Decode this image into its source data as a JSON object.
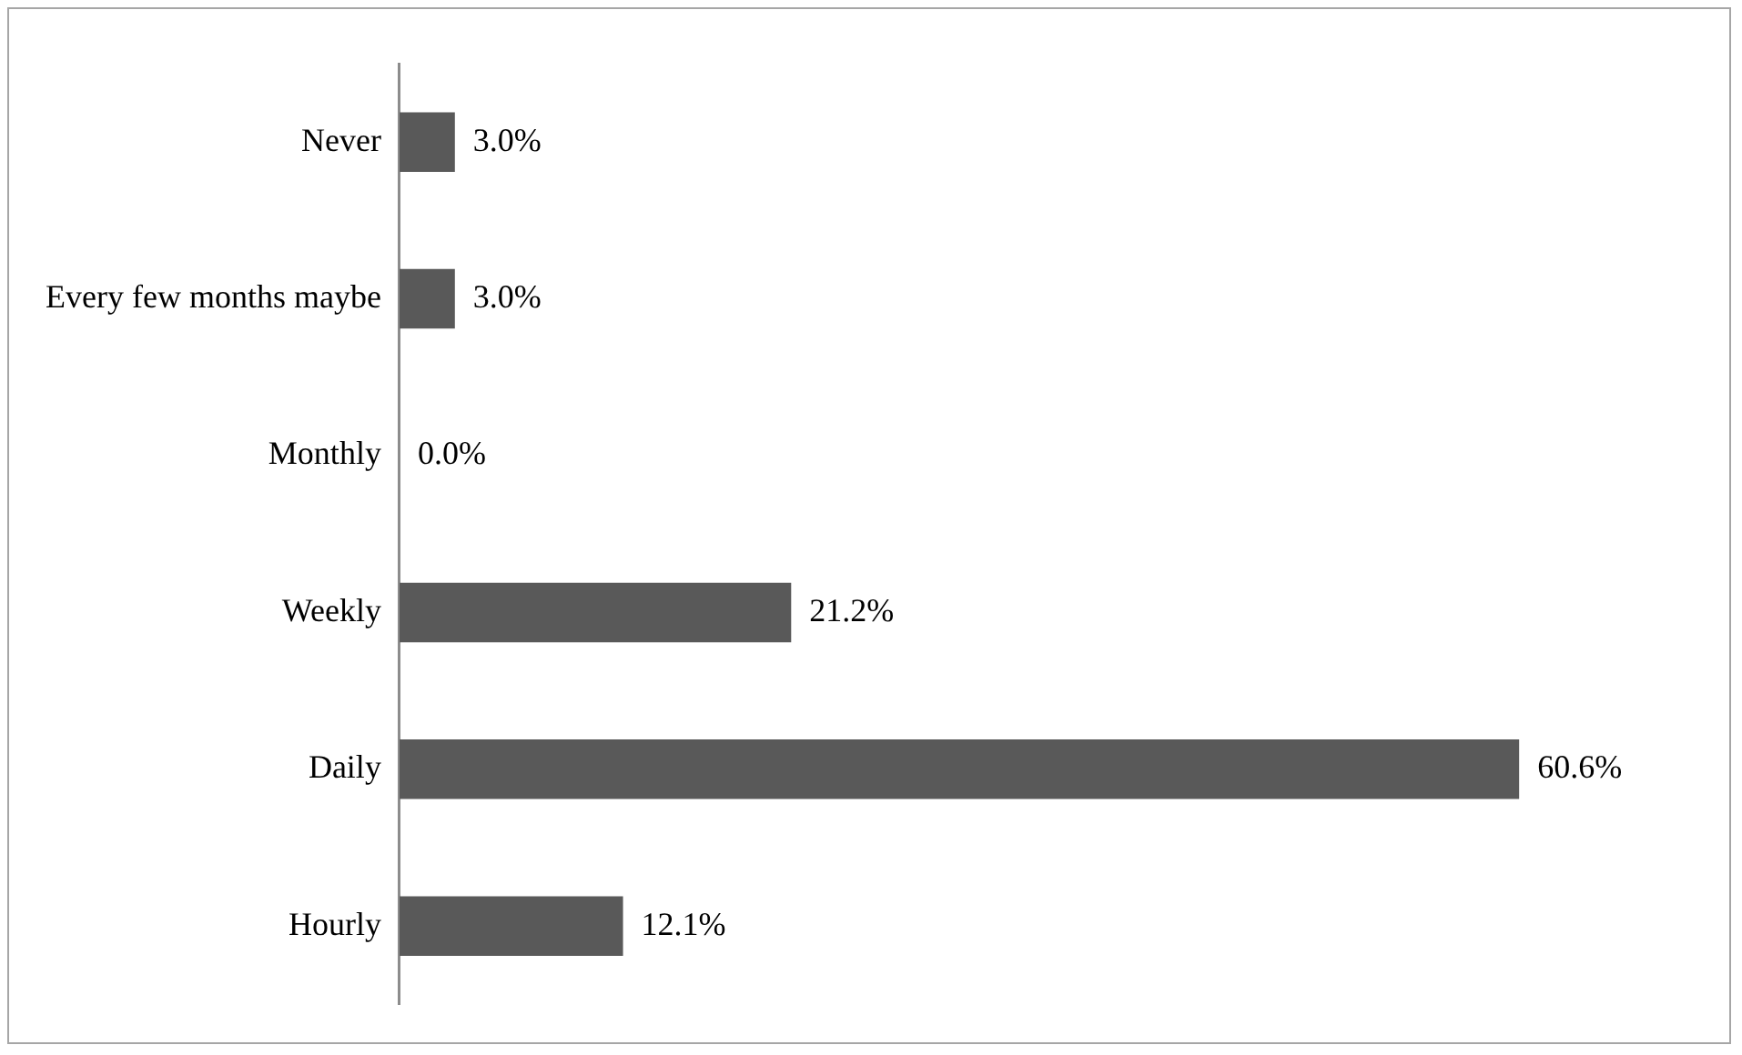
{
  "chart_data": {
    "type": "bar",
    "orientation": "horizontal",
    "categories": [
      "Never",
      "Every few months maybe",
      "Monthly",
      "Weekly",
      "Daily",
      "Hourly"
    ],
    "values": [
      3.0,
      3.0,
      0.0,
      21.2,
      60.6,
      12.1
    ],
    "value_labels": [
      "3.0%",
      "3.0%",
      "0.0%",
      "21.2%",
      "60.6%",
      "12.1%"
    ],
    "color": "#595959"
  }
}
